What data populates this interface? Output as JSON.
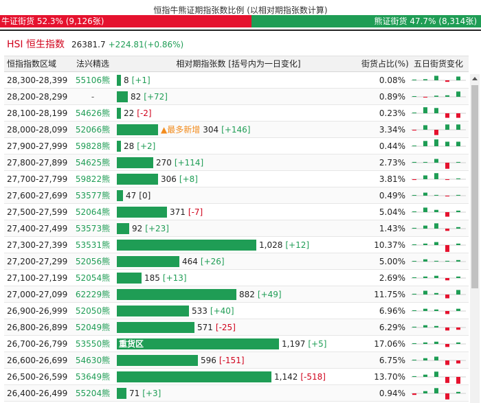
{
  "title": "恒指牛熊证期指张数比例 (以相对期指张数计算)",
  "ratio": {
    "bull_label": "牛证街货 52.3% (9,126张)",
    "bull_pct": 52.3,
    "bear_label": "熊证街货 47.7% (8,314张)",
    "bear_pct": 47.7
  },
  "hsi": {
    "name": "HSI 恒生指数",
    "price": "26381.7",
    "change": "+224.81(+0.86%)"
  },
  "headers": {
    "range": "恒指指数区域",
    "code": "法兴精选",
    "bar": "相对期指张数 [括号内为一日变化]",
    "pct": "街货占比(%)",
    "spark": "五日街货变化"
  },
  "colors": {
    "bull": "#e5122e",
    "bear": "#1f9d55",
    "tag": "#f28c1e"
  },
  "max_contracts": 1197,
  "rows": [
    {
      "range": "28,300-28,399",
      "code": "55106熊",
      "value": 8,
      "value_text": "8",
      "change": "[+1]",
      "pct": "0.08%",
      "spark": [
        0.1,
        0.15,
        0.6,
        -0.2,
        0.5
      ]
    },
    {
      "range": "28,200-28,299",
      "code": "-",
      "value": 82,
      "value_text": "82",
      "change": "[+72]",
      "pct": "0.89%",
      "spark": [
        0.05,
        -0.1,
        0.15,
        0.2,
        0.7
      ]
    },
    {
      "range": "28,100-28,199",
      "code": "54626熊",
      "value": 22,
      "value_text": "22",
      "change": "[-2]",
      "pct": "0.23%",
      "spark": [
        0.1,
        0.8,
        0.7,
        -0.6,
        -0.6
      ]
    },
    {
      "range": "28,000-28,099",
      "code": "52066熊",
      "value": 304,
      "value_text": "304",
      "change": "[+146]",
      "pct": "3.34%",
      "tag": "▲最多新增",
      "spark": [
        -0.1,
        0.6,
        -0.7,
        0.7,
        0.7
      ]
    },
    {
      "range": "27,900-27,999",
      "code": "59828熊",
      "value": 28,
      "value_text": "28",
      "change": "[+2]",
      "pct": "0.44%",
      "spark": [
        0.05,
        0.7,
        0.9,
        0.6,
        0.6
      ]
    },
    {
      "range": "27,800-27,899",
      "code": "54625熊",
      "value": 270,
      "value_text": "270",
      "change": "[+114]",
      "pct": "2.73%",
      "spark": [
        0.1,
        0.1,
        0.5,
        -0.8,
        0.1
      ]
    },
    {
      "range": "27,700-27,799",
      "code": "59822熊",
      "value": 306,
      "value_text": "306",
      "change": "[+8]",
      "pct": "3.81%",
      "spark": [
        -0.1,
        0.5,
        0.8,
        -0.1,
        0.1
      ]
    },
    {
      "range": "27,600-27,699",
      "code": "53577熊",
      "value": 47,
      "value_text": "47",
      "change": "[0]",
      "pct": "0.49%",
      "spark": [
        0.05,
        0.4,
        0.1,
        -0.1,
        0.1
      ]
    },
    {
      "range": "27,500-27,599",
      "code": "52064熊",
      "value": 371,
      "value_text": "371",
      "change": "[-7]",
      "pct": "5.04%",
      "spark": [
        0.1,
        0.6,
        0.3,
        -0.6,
        0.2
      ]
    },
    {
      "range": "27,400-27,499",
      "code": "53573熊",
      "value": 92,
      "value_text": "92",
      "change": "[+23]",
      "pct": "1.43%",
      "spark": [
        0.1,
        0.4,
        0.7,
        -0.3,
        0.2
      ]
    },
    {
      "range": "27,300-27,399",
      "code": "53531熊",
      "value": 1028,
      "value_text": "1,028",
      "change": "[+12]",
      "pct": "10.37%",
      "spark": [
        0.1,
        0.2,
        0.4,
        -0.9,
        0.2
      ]
    },
    {
      "range": "27,200-27,299",
      "code": "52056熊",
      "value": 464,
      "value_text": "464",
      "change": "[+26]",
      "pct": "5.00%",
      "spark": [
        0.05,
        0.3,
        0.1,
        0.1,
        0.2
      ]
    },
    {
      "range": "27,100-27,199",
      "code": "52054熊",
      "value": 185,
      "value_text": "185",
      "change": "[+13]",
      "pct": "2.69%",
      "spark": [
        0.1,
        0.2,
        0.3,
        -0.3,
        0.2
      ]
    },
    {
      "range": "27,000-27,099",
      "code": "62229熊",
      "value": 882,
      "value_text": "882",
      "change": "[+49]",
      "pct": "11.75%",
      "spark": [
        0.1,
        0.5,
        0.2,
        -0.5,
        0.6
      ]
    },
    {
      "range": "26,900-26,999",
      "code": "52050熊",
      "value": 533,
      "value_text": "533",
      "change": "[+40]",
      "pct": "6.96%",
      "spark": [
        0.1,
        0.3,
        0.2,
        -0.4,
        0.3
      ]
    },
    {
      "range": "26,800-26,899",
      "code": "52049熊",
      "value": 571,
      "value_text": "571",
      "change": "[-25]",
      "pct": "6.29%",
      "spark": [
        0.1,
        0.3,
        0.2,
        -0.4,
        -0.3
      ]
    },
    {
      "range": "26,700-26,799",
      "code": "53550熊",
      "value": 1197,
      "value_text": "1,197",
      "change": "[+5]",
      "pct": "17.06%",
      "label": "重货区",
      "spark": [
        0.1,
        0.2,
        0.3,
        -0.4,
        0.2
      ]
    },
    {
      "range": "26,600-26,699",
      "code": "54630熊",
      "value": 596,
      "value_text": "596",
      "change": "[-151]",
      "pct": "6.75%",
      "spark": [
        0.1,
        0.3,
        0.5,
        -0.6,
        -0.4
      ]
    },
    {
      "range": "26,500-26,599",
      "code": "53649熊",
      "value": 1142,
      "value_text": "1,142",
      "change": "[-518]",
      "pct": "13.70%",
      "spark": [
        0.1,
        0.3,
        0.7,
        -0.8,
        -0.9
      ]
    },
    {
      "range": "26,400-26,499",
      "code": "55204熊",
      "value": 71,
      "value_text": "71",
      "change": "[+3]",
      "pct": "0.94%",
      "spark": [
        -0.2,
        0.3,
        0.7,
        -0.8,
        0.2
      ]
    }
  ]
}
